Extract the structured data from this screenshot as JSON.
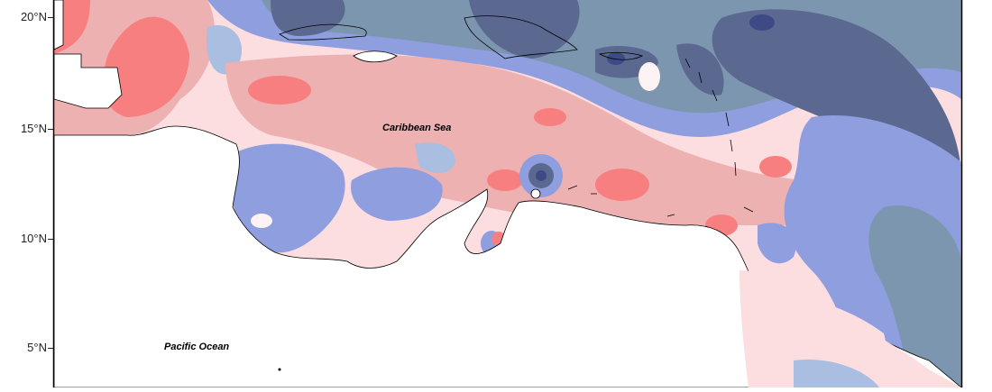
{
  "map": {
    "axis": {
      "lat_ticks": [
        {
          "label": "20°N"
        },
        {
          "label": "15°N"
        },
        {
          "label": "10°N"
        },
        {
          "label": "5°N"
        }
      ]
    },
    "places": {
      "caribbean_sea": "Caribbean Sea",
      "pacific_ocean": "Pacific Ocean"
    },
    "palette": {
      "red_strong": "#f77f7f",
      "red_mid": "#eeb1b1",
      "red_light": "#fcdde0",
      "neutral": "#fdf3f4",
      "blue_pale": "#c9dde4",
      "blue_light": "#a9bee0",
      "blue_mid": "#8e9ede",
      "blue_gray": "#7b96ae",
      "blue_dark": "#5b6890",
      "blue_deepest": "#3e4a86",
      "land": "#ffffff",
      "coast": "#000000"
    }
  }
}
